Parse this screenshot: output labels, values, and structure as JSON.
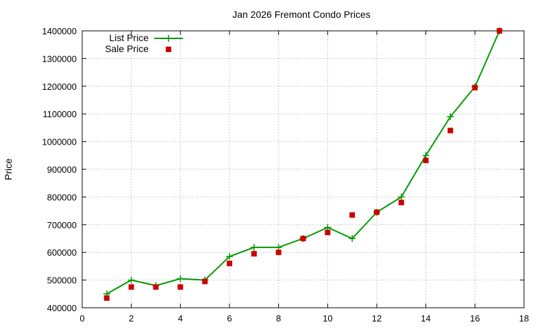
{
  "chart_data": {
    "type": "line",
    "title": "Jan 2026 Fremont Condo Prices",
    "xlabel": "",
    "ylabel": "Price",
    "xlim": [
      0,
      18
    ],
    "ylim": [
      400000,
      1400000
    ],
    "xticks": [
      0,
      2,
      4,
      6,
      8,
      10,
      12,
      14,
      16,
      18
    ],
    "yticks": [
      400000,
      500000,
      600000,
      700000,
      800000,
      900000,
      1000000,
      1100000,
      1200000,
      1300000,
      1400000
    ],
    "grid": true,
    "legend_position": "top-left",
    "series": [
      {
        "name": "List Price",
        "style": "line+cross",
        "color": "#009900",
        "x": [
          1,
          2,
          3,
          4,
          5,
          6,
          7,
          8,
          9,
          10,
          11,
          12,
          13,
          14,
          15,
          16,
          17
        ],
        "y": [
          450000,
          500000,
          480000,
          505000,
          500000,
          585000,
          618000,
          618000,
          650000,
          690000,
          650000,
          745000,
          800000,
          950000,
          1090000,
          1198000,
          1400000
        ]
      },
      {
        "name": "Sale Price",
        "style": "square",
        "color": "#cc0000",
        "x": [
          1,
          2,
          3,
          4,
          5,
          6,
          7,
          8,
          9,
          10,
          11,
          12,
          13,
          14,
          15,
          16,
          17
        ],
        "y": [
          435000,
          475000,
          475000,
          475000,
          495000,
          560000,
          595000,
          600000,
          650000,
          672000,
          735000,
          745000,
          780000,
          932000,
          1040000,
          1195000,
          1400000
        ]
      }
    ]
  }
}
